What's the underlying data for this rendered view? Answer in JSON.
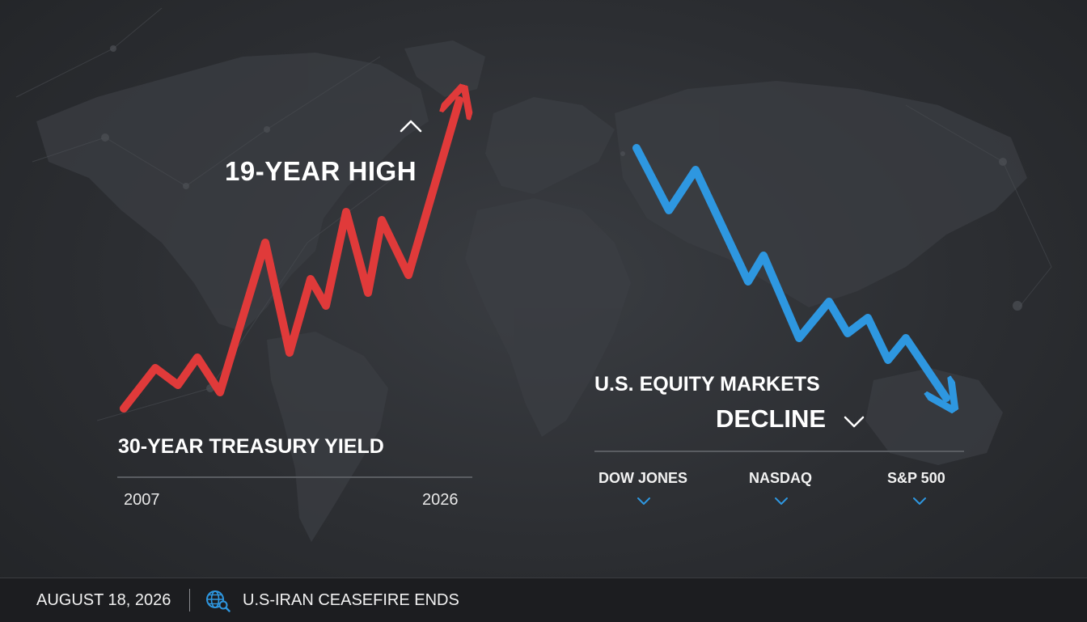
{
  "colors": {
    "yield_line": "#e03a3a",
    "equity_line": "#2e97e0",
    "background": "#2c2e32",
    "footer": "#1c1d20"
  },
  "treasury": {
    "headline": "19-YEAR HIGH",
    "label": "30-YEAR TREASURY YIELD",
    "start_year": "2007",
    "end_year": "2026",
    "up_icon": "chevron-up-icon"
  },
  "equities": {
    "title": "U.S. EQUITY MARKETS",
    "headline": "DECLINE",
    "indices": [
      {
        "label": "DOW JONES",
        "icon": "chevron-down-icon"
      },
      {
        "label": "NASDAQ",
        "icon": "chevron-down-icon"
      },
      {
        "label": "S&P 500",
        "icon": "chevron-down-icon"
      }
    ]
  },
  "footer": {
    "date": "AUGUST 18, 2026",
    "event": "U.S-IRAN CEASEFIRE ENDS",
    "icon": "globe-search-icon"
  }
}
